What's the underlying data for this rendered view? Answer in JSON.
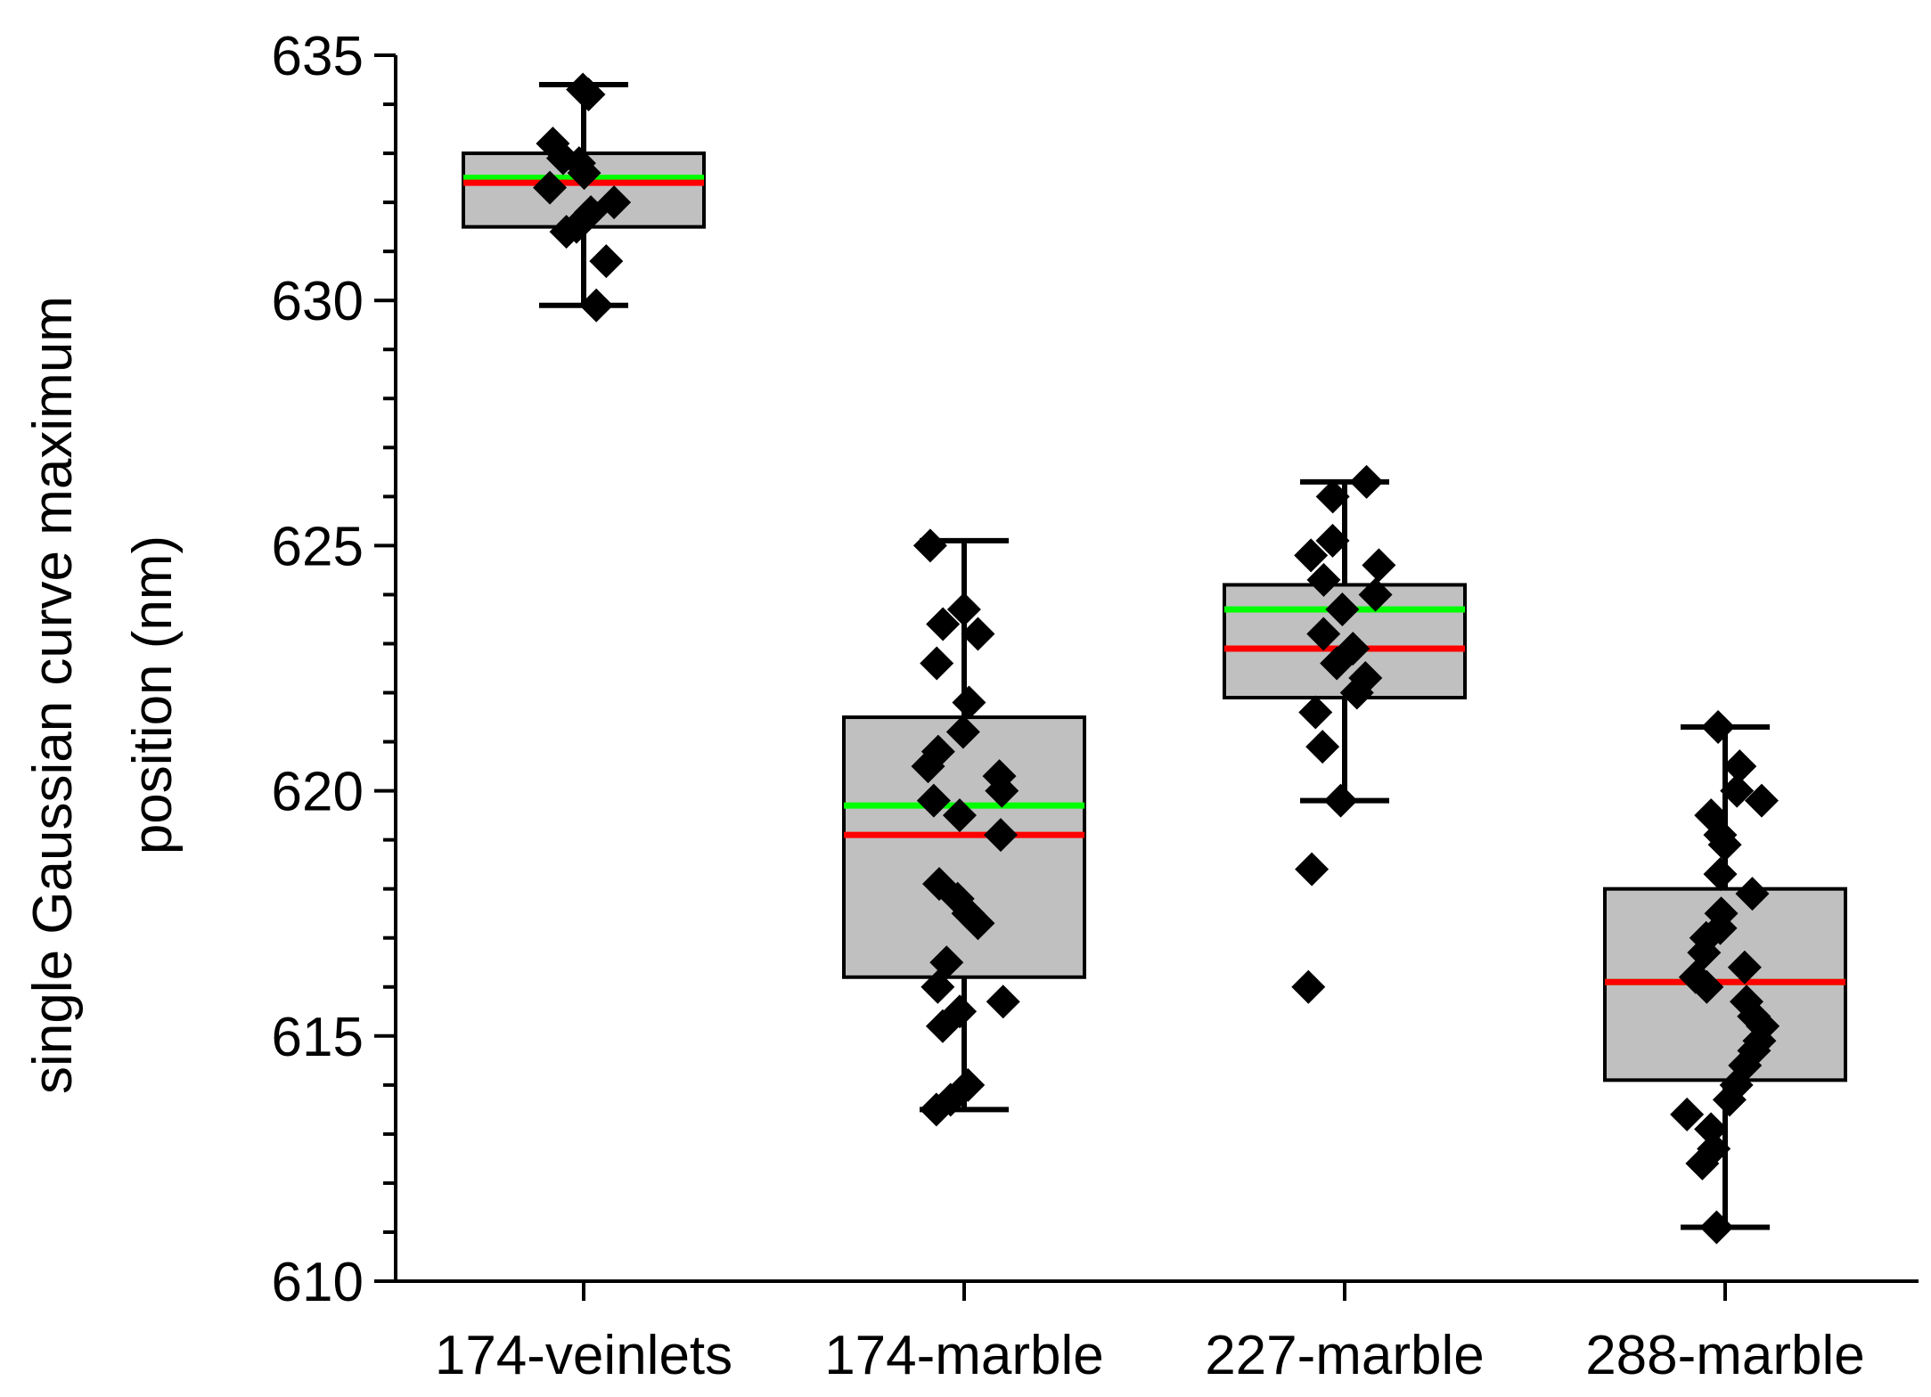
{
  "chart_data": {
    "type": "box",
    "title": "",
    "xlabel": "",
    "ylabel": [
      "single Gaussian curve maximum",
      "position (nm)"
    ],
    "ylim": [
      610,
      635
    ],
    "yticks": [
      610,
      615,
      620,
      625,
      630,
      635
    ],
    "yminor_step": 1,
    "grid": false,
    "categories": [
      "174-veinlets",
      "174-marble",
      "227-marble",
      "288-marble"
    ],
    "colors": {
      "box_fill": "#c0c0c0",
      "box_edge": "#000000",
      "mean_line": "#00ff00",
      "median_line": "#ff0000",
      "points": "#000000"
    },
    "groups": [
      {
        "name": "174-veinlets",
        "whisker_low": 629.9,
        "q1": 631.5,
        "median": 632.4,
        "mean": 632.5,
        "q3": 633.0,
        "whisker_high": 634.4,
        "points": [
          634.3,
          634.2,
          633.2,
          632.9,
          632.8,
          632.6,
          632.3,
          632.0,
          631.8,
          631.5,
          631.4,
          630.8,
          629.9
        ]
      },
      {
        "name": "174-marble",
        "whisker_low": 613.5,
        "q1": 616.2,
        "median": 619.1,
        "mean": 619.7,
        "q3": 621.5,
        "whisker_high": 625.1,
        "points": [
          625.0,
          623.7,
          623.4,
          623.2,
          622.6,
          621.8,
          621.2,
          620.8,
          620.5,
          620.3,
          620.0,
          619.8,
          619.5,
          619.1,
          618.1,
          617.8,
          617.5,
          617.3,
          616.5,
          616.0,
          615.7,
          615.5,
          615.2,
          614.0,
          613.7,
          613.5
        ]
      },
      {
        "name": "227-marble",
        "whisker_low": 619.8,
        "q1": 621.9,
        "median": 622.9,
        "mean": 623.7,
        "q3": 624.2,
        "whisker_high": 626.3,
        "points": [
          626.3,
          626.0,
          625.1,
          624.8,
          624.6,
          624.3,
          624.0,
          623.7,
          623.2,
          622.9,
          622.6,
          622.3,
          622.0,
          621.6,
          620.9,
          619.8,
          618.4,
          616.0
        ]
      },
      {
        "name": "288-marble",
        "whisker_low": 611.1,
        "q1": 614.1,
        "median": 616.1,
        "mean": 616.1,
        "q3": 618.0,
        "whisker_high": 621.3,
        "points": [
          621.3,
          620.5,
          620.0,
          619.8,
          619.5,
          619.1,
          618.9,
          618.3,
          617.9,
          617.5,
          617.2,
          617.0,
          616.7,
          616.4,
          616.2,
          616.0,
          615.7,
          615.4,
          615.2,
          614.9,
          614.7,
          614.4,
          614.0,
          613.7,
          613.4,
          613.1,
          612.7,
          612.4,
          611.1
        ]
      }
    ]
  }
}
